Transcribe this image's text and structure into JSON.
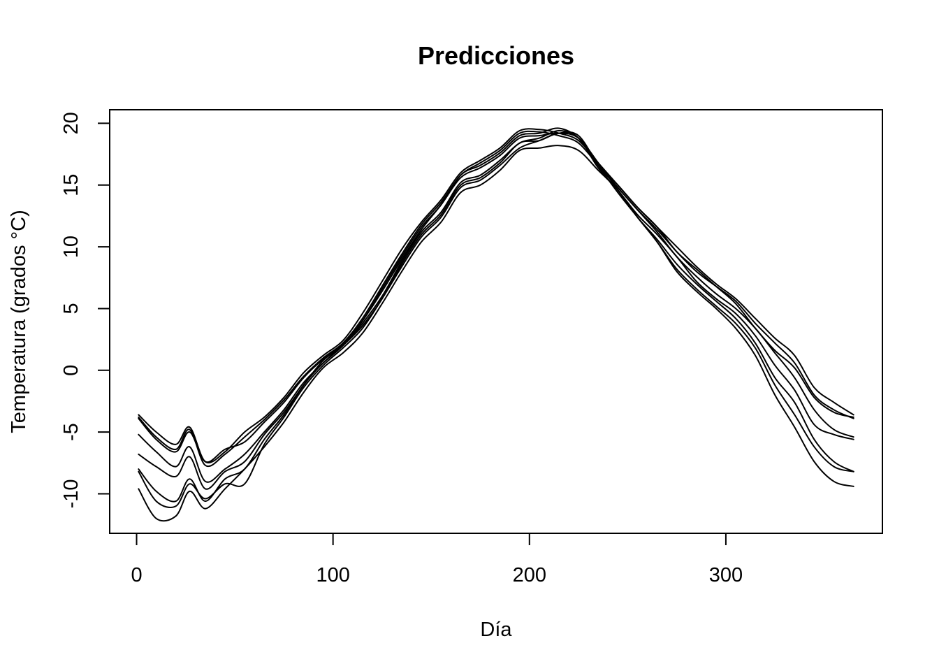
{
  "chart_data": {
    "type": "line",
    "title": "Predicciones",
    "xlabel": "Día",
    "ylabel": "Temperatura (grados °C)",
    "xlim": [
      -13.7,
      379.7
    ],
    "ylim": [
      -13.2,
      21.1
    ],
    "xticks": [
      0,
      100,
      200,
      300
    ],
    "yticks": [
      -10,
      -5,
      0,
      5,
      10,
      15,
      20
    ],
    "x": [
      1,
      10,
      20,
      27,
      35,
      45,
      55,
      65,
      75,
      85,
      95,
      105,
      115,
      125,
      135,
      145,
      155,
      165,
      175,
      185,
      195,
      205,
      215,
      225,
      235,
      245,
      255,
      265,
      275,
      285,
      295,
      305,
      315,
      325,
      335,
      345,
      355,
      365
    ],
    "series": [
      {
        "values": [
          -3.6,
          -5.0,
          -6.0,
          -4.6,
          -7.4,
          -6.6,
          -5.0,
          -3.8,
          -2.2,
          -0.2,
          1.2,
          2.4,
          4.6,
          7.2,
          9.8,
          12.0,
          13.8,
          16.0,
          17.0,
          18.0,
          19.4,
          19.5,
          19.2,
          18.6,
          16.8,
          15.0,
          13.2,
          11.6,
          10.0,
          8.4,
          7.0,
          5.8,
          4.2,
          2.6,
          1.2,
          -1.4,
          -2.6,
          -3.6
        ]
      },
      {
        "values": [
          -3.8,
          -5.4,
          -6.4,
          -4.8,
          -7.7,
          -6.8,
          -5.4,
          -4.0,
          -2.4,
          -0.5,
          1.0,
          2.2,
          4.2,
          6.8,
          9.4,
          11.8,
          13.6,
          15.8,
          16.8,
          17.8,
          19.2,
          19.3,
          19.0,
          18.4,
          16.6,
          14.8,
          13.0,
          11.4,
          9.6,
          8.0,
          6.8,
          5.6,
          3.8,
          2.2,
          0.6,
          -2.0,
          -3.2,
          -3.9
        ]
      },
      {
        "values": [
          -5.2,
          -6.6,
          -7.8,
          -6.2,
          -9.0,
          -8.0,
          -6.8,
          -5.0,
          -3.2,
          -1.0,
          0.6,
          2.0,
          4.0,
          6.4,
          9.0,
          11.4,
          13.4,
          15.6,
          16.4,
          17.4,
          18.8,
          19.0,
          19.2,
          18.8,
          16.6,
          14.8,
          13.0,
          11.2,
          9.2,
          7.6,
          6.2,
          5.0,
          3.4,
          1.4,
          -0.6,
          -3.2,
          -4.8,
          -5.4
        ]
      },
      {
        "values": [
          -6.8,
          -7.8,
          -8.6,
          -7.0,
          -9.6,
          -8.2,
          -7.4,
          -5.2,
          -3.4,
          -1.2,
          0.8,
          2.0,
          3.8,
          6.0,
          8.8,
          11.2,
          12.8,
          15.2,
          15.8,
          17.0,
          18.4,
          18.8,
          19.4,
          18.8,
          16.4,
          14.6,
          12.6,
          11.0,
          9.2,
          7.2,
          5.8,
          4.6,
          2.8,
          0.4,
          -1.6,
          -4.4,
          -5.2,
          -5.6
        ]
      },
      {
        "values": [
          -8.0,
          -9.8,
          -10.6,
          -8.8,
          -10.6,
          -8.8,
          -8.0,
          -5.6,
          -3.6,
          -1.2,
          0.6,
          2.0,
          3.6,
          5.8,
          8.6,
          11.0,
          12.6,
          15.0,
          15.6,
          16.8,
          18.4,
          18.6,
          19.2,
          18.8,
          16.8,
          14.6,
          12.4,
          10.6,
          8.6,
          7.0,
          5.6,
          4.2,
          2.2,
          -0.6,
          -2.6,
          -5.6,
          -7.4,
          -8.2
        ]
      },
      {
        "values": [
          -8.2,
          -10.6,
          -11.0,
          -9.2,
          -10.4,
          -9.2,
          -9.2,
          -6.0,
          -3.8,
          -1.4,
          0.4,
          1.8,
          3.4,
          5.8,
          8.4,
          10.8,
          12.4,
          14.8,
          15.4,
          16.6,
          18.0,
          18.6,
          19.2,
          19.0,
          16.6,
          14.4,
          12.4,
          10.4,
          8.2,
          6.6,
          5.2,
          3.8,
          1.8,
          -1.2,
          -3.6,
          -6.2,
          -7.8,
          -8.2
        ]
      },
      {
        "values": [
          -9.6,
          -12.0,
          -11.8,
          -9.8,
          -11.2,
          -9.6,
          -8.0,
          -6.2,
          -4.2,
          -1.8,
          0.2,
          1.4,
          3.0,
          5.4,
          8.0,
          10.4,
          12.0,
          14.4,
          15.0,
          16.2,
          17.8,
          18.0,
          18.2,
          17.8,
          16.2,
          14.6,
          12.4,
          10.4,
          8.0,
          6.4,
          5.0,
          3.4,
          1.2,
          -2.0,
          -4.6,
          -7.4,
          -9.0,
          -9.4
        ]
      },
      {
        "values": [
          -3.9,
          -5.6,
          -6.6,
          -5.0,
          -7.4,
          -6.4,
          -5.8,
          -4.2,
          -2.6,
          -0.6,
          0.9,
          2.1,
          4.0,
          6.6,
          9.2,
          11.6,
          13.4,
          15.8,
          16.6,
          17.6,
          19.0,
          19.2,
          19.6,
          18.8,
          16.6,
          15.0,
          13.2,
          11.6,
          9.6,
          8.2,
          6.8,
          5.4,
          3.4,
          1.6,
          0.2,
          -2.2,
          -3.4,
          -3.8
        ]
      }
    ]
  }
}
